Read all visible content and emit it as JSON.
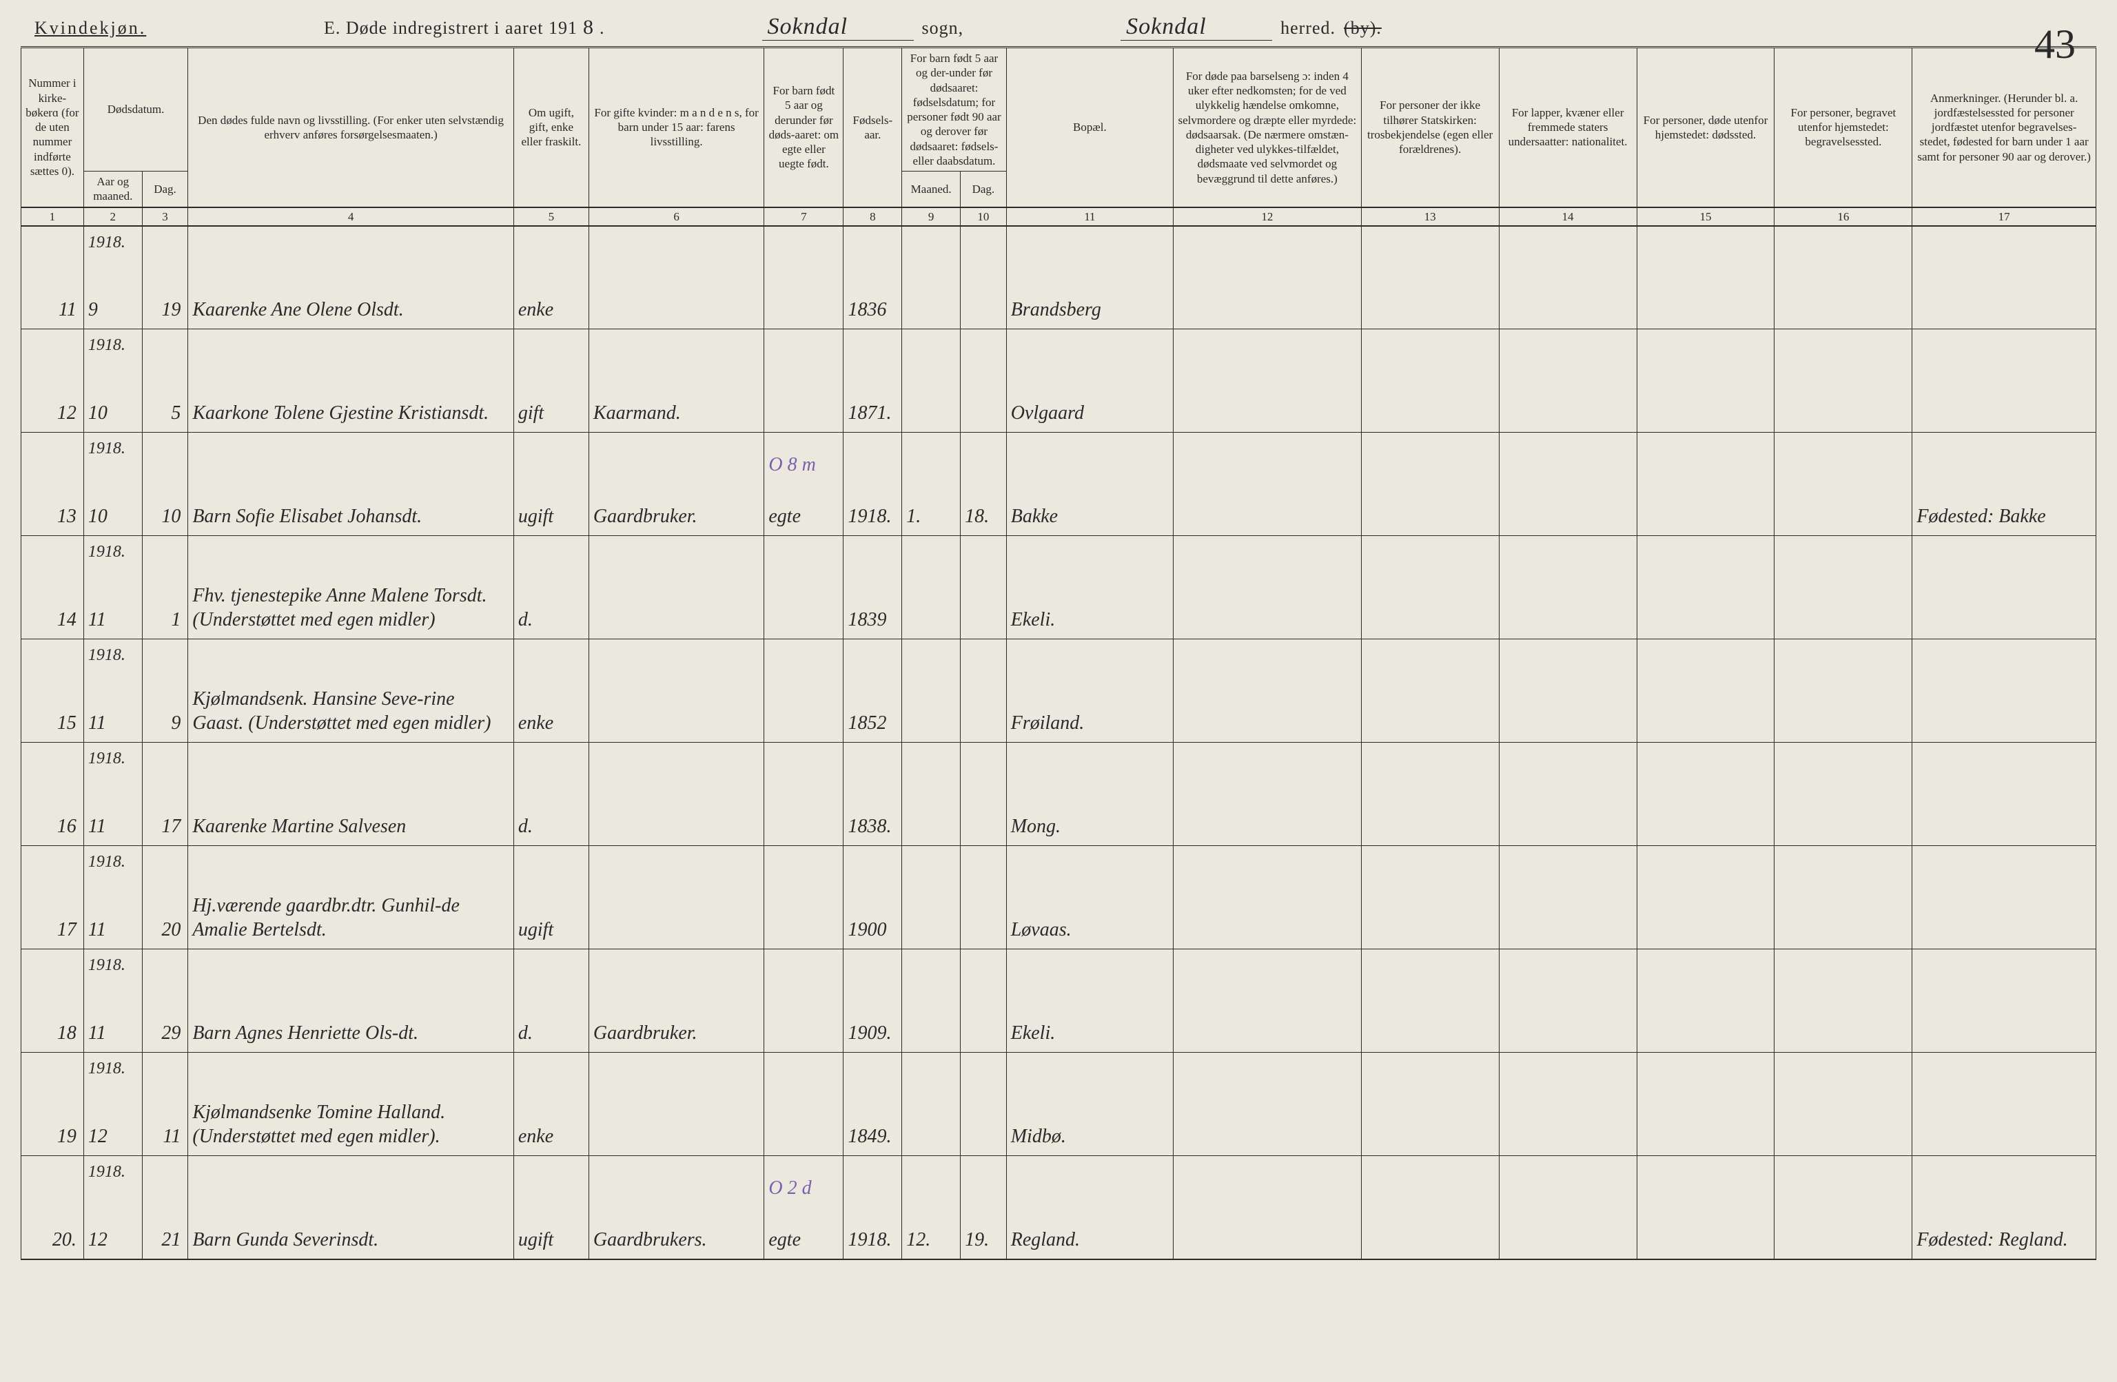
{
  "header": {
    "gender": "Kvindekjøn.",
    "title_prefix": "E.   Døde indregistrert i aaret 191",
    "year_suffix": "8",
    "period": ".",
    "sogn_value": "Sokndal",
    "sogn_label": "sogn,",
    "herred_value": "Sokndal",
    "herred_label": "herred.",
    "by_struck": "(by).",
    "page_number": "43"
  },
  "columns": {
    "h1": "Nummer i kirke-bøkerɑ (for de uten nummer indførte sættes 0).",
    "h2_top": "Dødsdatum.",
    "h2a": "Aar og maaned.",
    "h2b": "Dag.",
    "h4": "Den dødes fulde navn og livsstilling.\n(For enker uten selvstændig erhverv anføres forsørgelsesmaaten.)",
    "h5": "Om ugift, gift, enke eller fraskilt.",
    "h6": "For gifte kvinder: m a n d e n s, for barn under 15 aar: farens livsstilling.",
    "h7": "For barn født 5 aar og derunder før døds-aaret: om egte eller uegte født.",
    "h8": "Fødsels-aar.",
    "h9_top": "For barn født 5 aar og der-under før dødsaaret: fødselsdatum; for personer født 90 aar og derover før dødsaaret: fødsels- eller daabsdatum.",
    "h9a": "Maaned.",
    "h9b": "Dag.",
    "h11": "Bopæl.",
    "h12": "For døde paa barselseng ɔ: inden 4 uker efter nedkomsten; for de ved ulykkelig hændelse omkomne, selvmordere og dræpte eller myrdede: dødsaarsak. (De nærmere omstæn-digheter ved ulykkes-tilfældet, dødsmaate ved selvmordet og bevæggrund til dette anføres.)",
    "h13": "For personer der ikke tilhører Statskirken: trosbekjendelse (egen eller forældrenes).",
    "h14": "For lapper, kvæner eller fremmede staters undersaatter: nationalitet.",
    "h15": "For personer, døde utenfor hjemstedet: dødssted.",
    "h16": "For personer, begravet utenfor hjemstedet: begravelsessted.",
    "h17": "Anmerkninger. (Herunder bl. a. jordfæstelsessted for personer jordfæstet utenfor begravelses-stedet, fødested for barn under 1 aar samt for personer 90 aar og derover.)",
    "nums": [
      "1",
      "2",
      "3",
      "4",
      "5",
      "6",
      "7",
      "8",
      "9",
      "10",
      "11",
      "12",
      "13",
      "14",
      "15",
      "16",
      "17"
    ]
  },
  "rows": [
    {
      "no": "11",
      "year": "1918.",
      "month": "9",
      "day": "19",
      "name": "Kaarenke Ane Olene Olsdt.",
      "status": "enke",
      "col6": "",
      "col7": "",
      "birth": "1836",
      "c9": "",
      "c10": "",
      "bopael": "Brandsberg",
      "c12": "",
      "c13": "",
      "c14": "",
      "c15": "",
      "c16": "",
      "c17": ""
    },
    {
      "no": "12",
      "year": "1918.",
      "month": "10",
      "day": "5",
      "name": "Kaarkone Tolene Gjestine Kristiansdt.",
      "status": "gift",
      "col6": "Kaarmand.",
      "col7": "",
      "birth": "1871.",
      "c9": "",
      "c10": "",
      "bopael": "Ovlgaard",
      "c12": "",
      "c13": "",
      "c14": "",
      "c15": "",
      "c16": "",
      "c17": ""
    },
    {
      "no": "13",
      "year": "1918.",
      "month": "10",
      "day": "10",
      "name": "Barn Sofie Elisabet Johansdt.",
      "status": "ugift",
      "col6": "Gaardbruker.",
      "col7": "egte",
      "birth": "1918.",
      "c9": "1.",
      "c10": "18.",
      "bopael": "Bakke",
      "c12": "",
      "c13": "",
      "c14": "",
      "c15": "",
      "c16": "",
      "c17": "Fødested: Bakke",
      "note": "O 8 m"
    },
    {
      "no": "14",
      "year": "1918.",
      "month": "11",
      "day": "1",
      "name": "Fhv. tjenestepike Anne Malene Torsdt. (Understøttet med egen midler)",
      "status": "d.",
      "col6": "",
      "col7": "",
      "birth": "1839",
      "c9": "",
      "c10": "",
      "bopael": "Ekeli.",
      "c12": "",
      "c13": "",
      "c14": "",
      "c15": "",
      "c16": "",
      "c17": ""
    },
    {
      "no": "15",
      "year": "1918.",
      "month": "11",
      "day": "9",
      "name": "Kjølmandsenk. Hansine Seve-rine Gaast. (Understøttet med egen midler)",
      "status": "enke",
      "col6": "",
      "col7": "",
      "birth": "1852",
      "c9": "",
      "c10": "",
      "bopael": "Frøiland.",
      "c12": "",
      "c13": "",
      "c14": "",
      "c15": "",
      "c16": "",
      "c17": ""
    },
    {
      "no": "16",
      "year": "1918.",
      "month": "11",
      "day": "17",
      "name": "Kaarenke Martine Salvesen",
      "status": "d.",
      "col6": "",
      "col7": "",
      "birth": "1838.",
      "c9": "",
      "c10": "",
      "bopael": "Mong.",
      "c12": "",
      "c13": "",
      "c14": "",
      "c15": "",
      "c16": "",
      "c17": ""
    },
    {
      "no": "17",
      "year": "1918.",
      "month": "11",
      "day": "20",
      "name": "Hj.værende gaardbr.dtr. Gunhil-de Amalie Bertelsdt.",
      "status": "ugift",
      "col6": "",
      "col7": "",
      "birth": "1900",
      "c9": "",
      "c10": "",
      "bopael": "Løvaas.",
      "c12": "",
      "c13": "",
      "c14": "",
      "c15": "",
      "c16": "",
      "c17": ""
    },
    {
      "no": "18",
      "year": "1918.",
      "month": "11",
      "day": "29",
      "name": "Barn Agnes Henriette Ols-dt.",
      "status": "d.",
      "col6": "Gaardbruker.",
      "col7": "",
      "birth": "1909.",
      "c9": "",
      "c10": "",
      "bopael": "Ekeli.",
      "c12": "",
      "c13": "",
      "c14": "",
      "c15": "",
      "c16": "",
      "c17": ""
    },
    {
      "no": "19",
      "year": "1918.",
      "month": "12",
      "day": "11",
      "name": "Kjølmandsenke Tomine Halland. (Understøttet med egen midler).",
      "status": "enke",
      "col6": "",
      "col7": "",
      "birth": "1849.",
      "c9": "",
      "c10": "",
      "bopael": "Midbø.",
      "c12": "",
      "c13": "",
      "c14": "",
      "c15": "",
      "c16": "",
      "c17": ""
    },
    {
      "no": "20.",
      "year": "1918.",
      "month": "12",
      "day": "21",
      "name": "Barn Gunda Severinsdt.",
      "status": "ugift",
      "col6": "Gaardbrukers.",
      "col7": "egte",
      "birth": "1918.",
      "c9": "12.",
      "c10": "19.",
      "bopael": "Regland.",
      "c12": "",
      "c13": "",
      "c14": "",
      "c15": "",
      "c16": "",
      "c17": "Fødested: Regland.",
      "note": "O 2 d"
    }
  ]
}
